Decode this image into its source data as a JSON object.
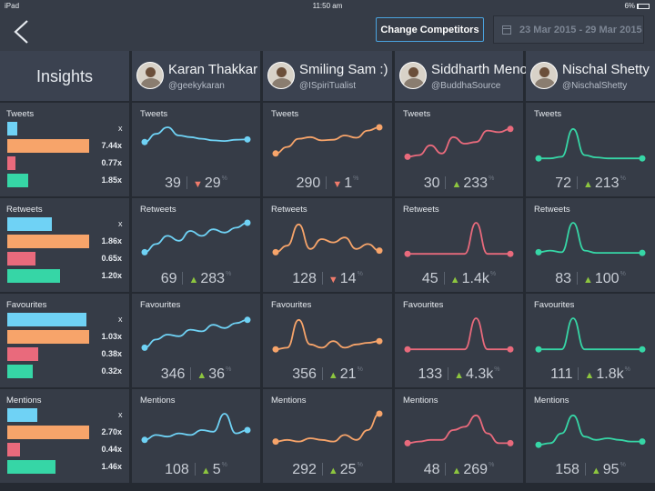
{
  "statusbar": {
    "device": "iPad",
    "time": "11:50 am",
    "battery": "6%"
  },
  "header": {
    "change_competitors": "Change Competitors",
    "date_from": "23 Mar 2015",
    "date_sep": "-",
    "date_to": "29 Mar 2015"
  },
  "insights": {
    "title": "Insights",
    "rows": [
      {
        "label": "Tweets",
        "x": "x",
        "bars": [
          0.12,
          1.0,
          0.1,
          0.25
        ],
        "values": [
          "7.44x",
          "0.77x",
          "1.85x"
        ]
      },
      {
        "label": "Retweets",
        "x": "x",
        "bars": [
          0.54,
          1.0,
          0.35,
          0.64
        ],
        "values": [
          "1.86x",
          "0.65x",
          "1.20x"
        ]
      },
      {
        "label": "Favourites",
        "x": "x",
        "bars": [
          0.97,
          1.0,
          0.38,
          0.31
        ],
        "values": [
          "1.03x",
          "0.38x",
          "0.32x"
        ]
      },
      {
        "label": "Mentions",
        "x": "x",
        "bars": [
          0.37,
          1.0,
          0.16,
          0.59
        ],
        "values": [
          "2.70x",
          "0.44x",
          "1.46x"
        ]
      }
    ],
    "bar_colors": [
      "#6fd2f5",
      "#f7a46a",
      "#e96a7c",
      "#36d6a6"
    ]
  },
  "competitors": [
    {
      "name": "Karan Thakkar",
      "handle": "@geekykaran",
      "color": "#6fd2f5"
    },
    {
      "name": "Smiling Sam :)",
      "handle": "@ISpiriTualist",
      "color": "#f7a46a"
    },
    {
      "name": "Siddharth Menon",
      "handle": "@BuddhaSource",
      "color": "#e96a7c"
    },
    {
      "name": "Nischal Shetty",
      "handle": "@NischalShetty",
      "color": "#36d6a6"
    }
  ],
  "metrics": [
    {
      "label": "Tweets",
      "cells": [
        {
          "value": "39",
          "dir": "down",
          "change": "29",
          "trend": [
            0.55,
            0.8,
            1.0,
            0.75,
            0.7,
            0.65,
            0.6,
            0.58,
            0.62,
            0.63
          ]
        },
        {
          "value": "290",
          "dir": "down",
          "change": "1",
          "trend": [
            0.2,
            0.4,
            0.65,
            0.7,
            0.6,
            0.62,
            0.75,
            0.68,
            0.9,
            1.0
          ]
        },
        {
          "value": "30",
          "dir": "up",
          "change": "233",
          "trend": [
            0.1,
            0.15,
            0.45,
            0.2,
            0.7,
            0.5,
            0.55,
            0.9,
            0.85,
            0.95
          ]
        },
        {
          "value": "72",
          "dir": "up",
          "change": "213",
          "trend": [
            0.05,
            0.05,
            0.1,
            0.95,
            0.15,
            0.08,
            0.05,
            0.05,
            0.05,
            0.05
          ]
        }
      ]
    },
    {
      "label": "Retweets",
      "cells": [
        {
          "value": "69",
          "dir": "up",
          "change": "283",
          "trend": [
            0.1,
            0.35,
            0.6,
            0.45,
            0.75,
            0.6,
            0.8,
            0.7,
            0.85,
            1.0
          ]
        },
        {
          "value": "128",
          "dir": "down",
          "change": "14",
          "trend": [
            0.1,
            0.3,
            0.95,
            0.2,
            0.5,
            0.4,
            0.55,
            0.2,
            0.35,
            0.15
          ]
        },
        {
          "value": "45",
          "dir": "up",
          "change": "1.4k",
          "trend": [
            0.05,
            0.05,
            0.05,
            0.05,
            0.05,
            0.05,
            1.0,
            0.05,
            0.05,
            0.05
          ]
        },
        {
          "value": "83",
          "dir": "up",
          "change": "100",
          "trend": [
            0.1,
            0.15,
            0.1,
            1.0,
            0.15,
            0.08,
            0.08,
            0.08,
            0.08,
            0.08
          ]
        }
      ]
    },
    {
      "label": "Favourites",
      "cells": [
        {
          "value": "346",
          "dir": "up",
          "change": "36",
          "trend": [
            0.1,
            0.35,
            0.5,
            0.45,
            0.65,
            0.6,
            0.8,
            0.7,
            0.85,
            0.95
          ]
        },
        {
          "value": "356",
          "dir": "up",
          "change": "21",
          "trend": [
            0.05,
            0.1,
            0.95,
            0.2,
            0.1,
            0.3,
            0.1,
            0.2,
            0.25,
            0.3
          ]
        },
        {
          "value": "133",
          "dir": "up",
          "change": "4.3k",
          "trend": [
            0.05,
            0.05,
            0.05,
            0.05,
            0.05,
            0.05,
            1.0,
            0.05,
            0.05,
            0.05
          ]
        },
        {
          "value": "111",
          "dir": "up",
          "change": "1.8k",
          "trend": [
            0.05,
            0.05,
            0.05,
            1.0,
            0.05,
            0.05,
            0.05,
            0.05,
            0.05,
            0.05
          ]
        }
      ]
    },
    {
      "label": "Mentions",
      "cells": [
        {
          "value": "108",
          "dir": "up",
          "change": "5",
          "trend": [
            0.2,
            0.35,
            0.3,
            0.4,
            0.35,
            0.5,
            0.45,
            1.0,
            0.4,
            0.5
          ]
        },
        {
          "value": "292",
          "dir": "up",
          "change": "25",
          "trend": [
            0.15,
            0.2,
            0.15,
            0.25,
            0.2,
            0.15,
            0.35,
            0.2,
            0.5,
            1.0
          ]
        },
        {
          "value": "48",
          "dir": "up",
          "change": "269",
          "trend": [
            0.1,
            0.15,
            0.2,
            0.2,
            0.5,
            0.6,
            0.95,
            0.4,
            0.1,
            0.1
          ]
        },
        {
          "value": "158",
          "dir": "up",
          "change": "95",
          "trend": [
            0.05,
            0.1,
            0.4,
            0.95,
            0.3,
            0.2,
            0.25,
            0.2,
            0.15,
            0.15
          ]
        }
      ]
    }
  ]
}
